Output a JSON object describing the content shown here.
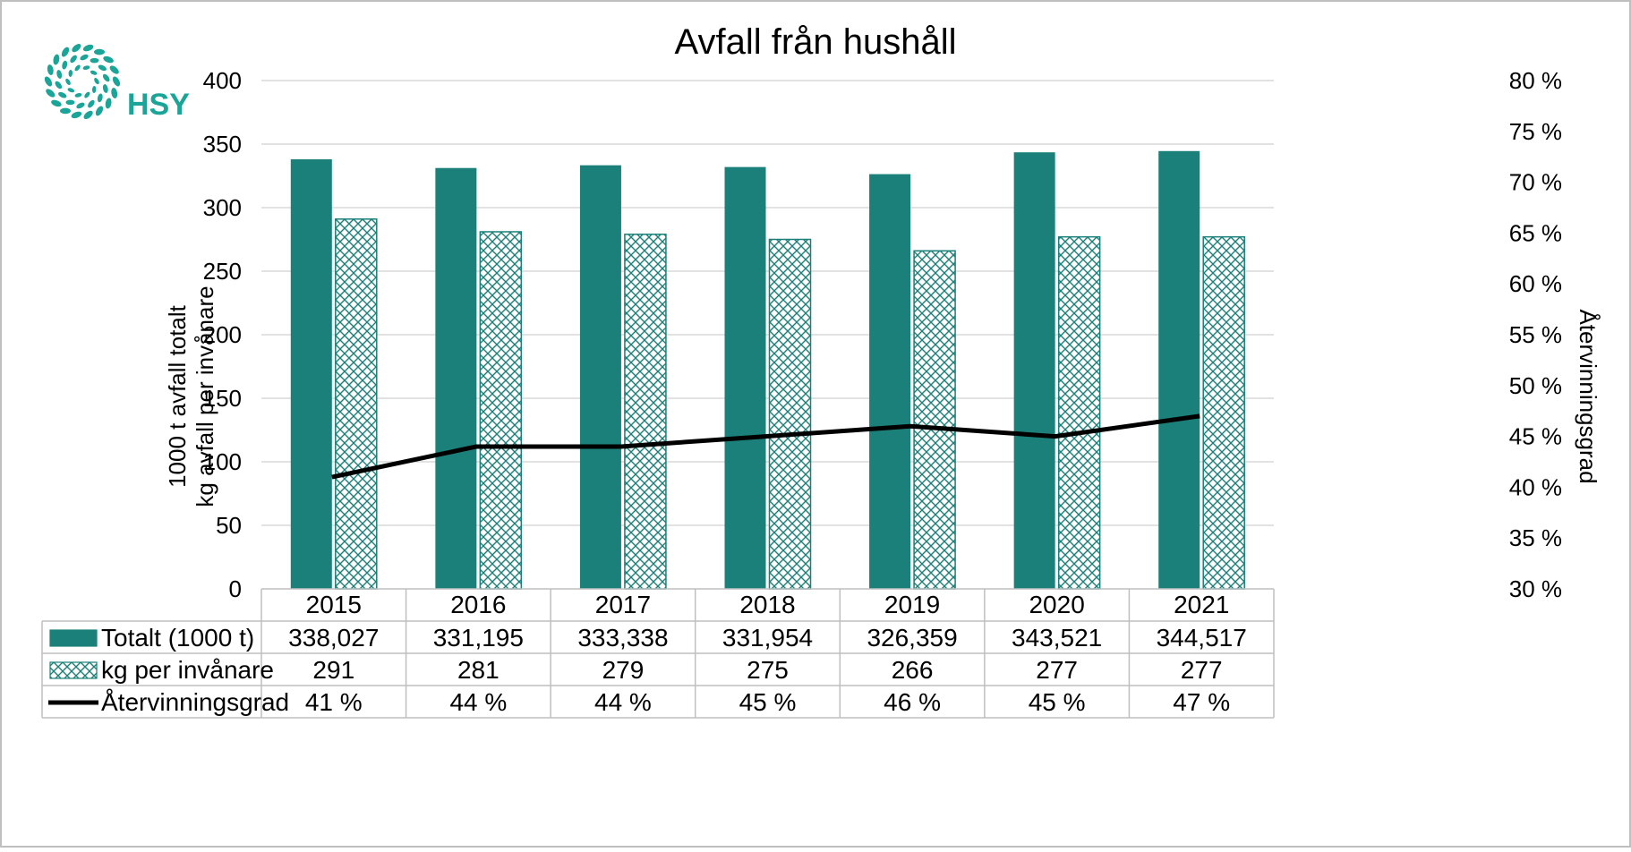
{
  "logo": {
    "text": "HSY"
  },
  "colors": {
    "teal": "#1a8079",
    "line": "#000000",
    "grid": "#d9d9d9",
    "border": "#bfbfbf",
    "logo": "#1aa598"
  },
  "chart_data": {
    "type": "bar",
    "title": "Avfall från hushåll",
    "categories": [
      "2015",
      "2016",
      "2017",
      "2018",
      "2019",
      "2020",
      "2021"
    ],
    "ylabel_line1": "1000 t avfall totalt",
    "ylabel_line2": "kg avfall per invånare",
    "y2label": "Återvinningsgrad",
    "ylim": [
      0,
      400
    ],
    "y2lim": [
      30,
      80
    ],
    "y_ticks": [
      "0",
      "50",
      "100",
      "150",
      "200",
      "250",
      "300",
      "350",
      "400"
    ],
    "y2_ticks": [
      "30 %",
      "35 %",
      "40 %",
      "45 %",
      "50 %",
      "55 %",
      "60 %",
      "65 %",
      "70 %",
      "75 %",
      "80 %"
    ],
    "grid": true,
    "legend": "data-table-below",
    "series": [
      {
        "name": "Totalt (1000 t)",
        "kind": "bar",
        "fill": "solid",
        "axis": "left",
        "values": [
          338.027,
          331.195,
          333.338,
          331.954,
          326.359,
          343.521,
          344.517
        ],
        "labels": [
          "338,027",
          "331,195",
          "333,338",
          "331,954",
          "326,359",
          "343,521",
          "344,517"
        ]
      },
      {
        "name": "kg per invånare",
        "kind": "bar",
        "fill": "hatched",
        "axis": "left",
        "values": [
          291,
          281,
          279,
          275,
          266,
          277,
          277
        ],
        "labels": [
          "291",
          "281",
          "279",
          "275",
          "266",
          "277",
          "277"
        ]
      },
      {
        "name": "Återvinningsgrad",
        "kind": "line",
        "axis": "right",
        "values": [
          41,
          44,
          44,
          45,
          46,
          45,
          47
        ],
        "labels": [
          "41 %",
          "44 %",
          "44 %",
          "45 %",
          "46 %",
          "45 %",
          "47 %"
        ]
      }
    ]
  }
}
